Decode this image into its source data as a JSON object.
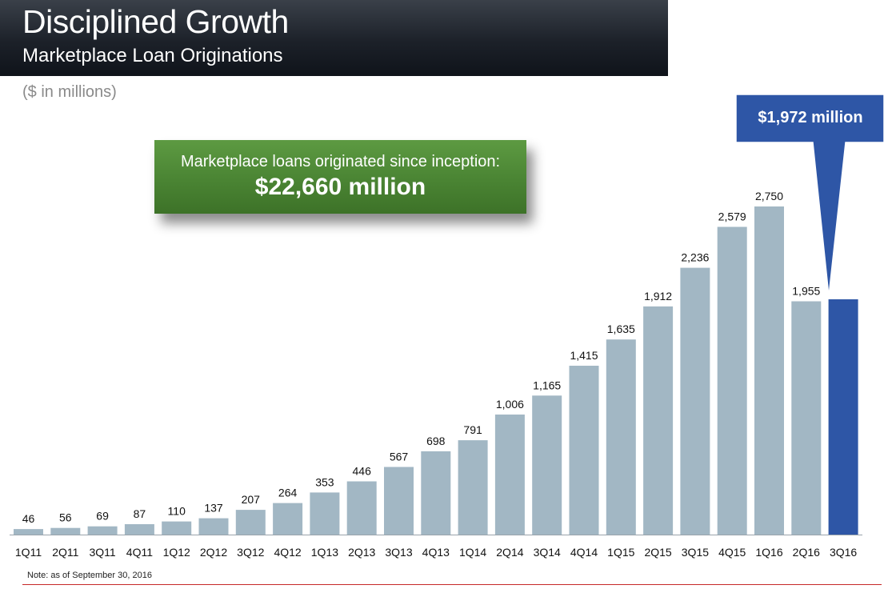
{
  "header": {
    "title": "Disciplined Growth",
    "subtitle": "Marketplace Loan Originations"
  },
  "units_label": "($ in millions)",
  "callout_inception": {
    "line1": "Marketplace loans originated since inception:",
    "line2": "$22,660 million"
  },
  "callout_latest": {
    "label": "$1,972 million"
  },
  "note": "Note: as of September 30, 2016",
  "colors": {
    "bar": "#a2b7c4",
    "highlight_bar": "#2e56a6",
    "callout_green": "#4a8433",
    "callout_blue": "#2e56a6"
  },
  "chart_data": {
    "type": "bar",
    "title": "Marketplace Loan Originations",
    "ylabel": "($ in millions)",
    "xlabel": "",
    "grid": false,
    "ylim": [
      0,
      2750
    ],
    "categories": [
      "1Q11",
      "2Q11",
      "3Q11",
      "4Q11",
      "1Q12",
      "2Q12",
      "3Q12",
      "4Q12",
      "1Q13",
      "2Q13",
      "3Q13",
      "4Q13",
      "1Q14",
      "2Q14",
      "3Q14",
      "4Q14",
      "1Q15",
      "2Q15",
      "3Q15",
      "4Q15",
      "1Q16",
      "2Q16",
      "3Q16"
    ],
    "values": [
      46,
      56,
      69,
      87,
      110,
      137,
      207,
      264,
      353,
      446,
      567,
      698,
      791,
      1006,
      1165,
      1415,
      1635,
      1912,
      2236,
      2579,
      2750,
      1955,
      1972
    ],
    "value_labels": [
      "46",
      "56",
      "69",
      "87",
      "110",
      "137",
      "207",
      "264",
      "353",
      "446",
      "567",
      "698",
      "791",
      "1,006",
      "1,165",
      "1,415",
      "1,635",
      "1,912",
      "2,236",
      "2,579",
      "2,750",
      "1,955",
      ""
    ],
    "highlight_category": "3Q16"
  }
}
